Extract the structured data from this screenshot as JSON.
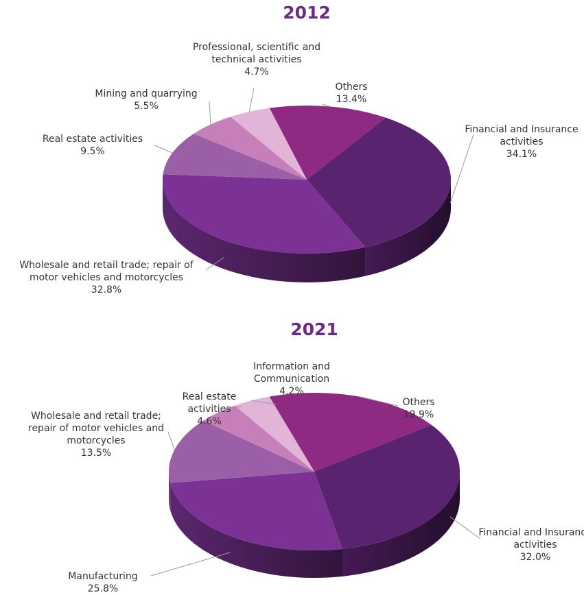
{
  "chart_data": [
    {
      "type": "pie",
      "title": "2012",
      "categories": [
        "Others",
        "Financial and Insurance activities",
        "Wholesale and retail trade; repair of motor vehicles and motorcycles",
        "Real estate activities",
        "Mining and quarrying",
        "Professional, scientific and technical activities"
      ],
      "values": [
        13.4,
        34.1,
        32.8,
        9.5,
        5.5,
        4.7
      ],
      "value_labels": [
        "13.4%",
        "34.1%",
        "32.8%",
        "9.5%",
        "5.5%",
        "4.7%"
      ],
      "colors": [
        "#8e2a82",
        "#5a2370",
        "#7b3294",
        "#9b5fa8",
        "#c67fb8",
        "#e2b5d8"
      ]
    },
    {
      "type": "pie",
      "title": "2021",
      "categories": [
        "Others",
        "Financial and Insurance activities",
        "Manufacturing",
        "Wholesale and retail trade; repair of motor vehicles and motorcycles",
        "Real estate activities",
        "Information and Communication"
      ],
      "values": [
        19.9,
        32.0,
        25.8,
        13.5,
        4.6,
        4.2
      ],
      "value_labels": [
        "19.9%",
        "32.0%",
        "25.8%",
        "13.5%",
        "4.6%",
        "4.2%"
      ],
      "colors": [
        "#8e2a82",
        "#5a2370",
        "#7b3294",
        "#9b5fa8",
        "#c67fb8",
        "#e2b5d8"
      ]
    }
  ]
}
